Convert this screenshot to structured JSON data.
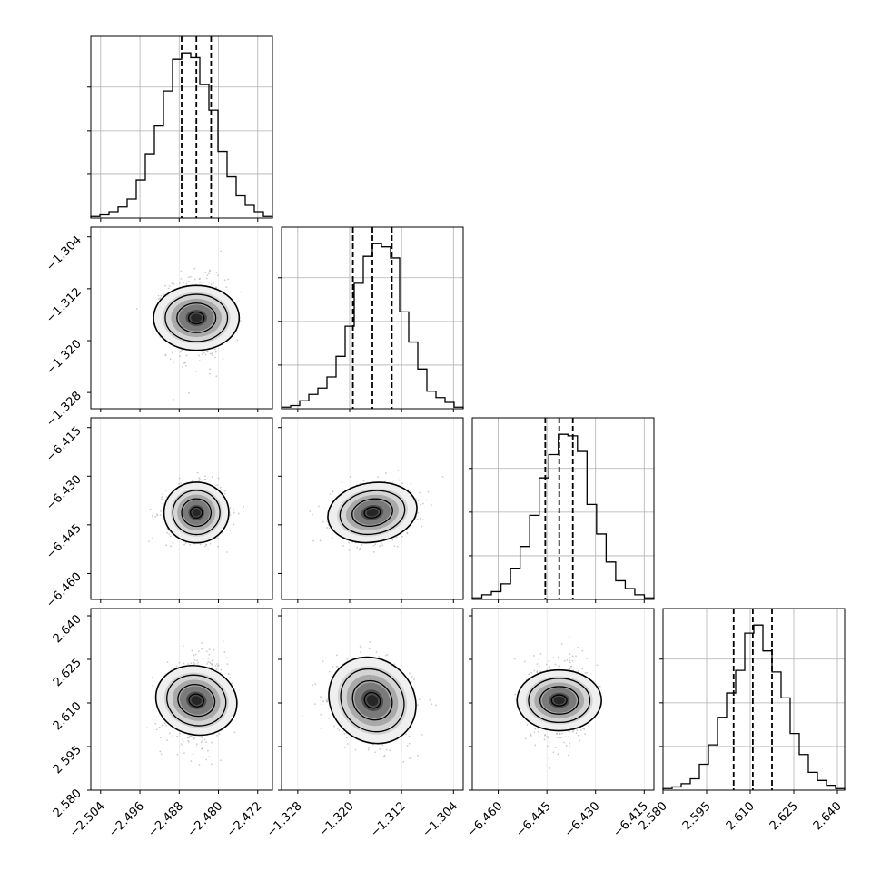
{
  "chart_data": {
    "type": "corner",
    "title": "",
    "parameters": [
      {
        "label": "",
        "range": [
          -2.506,
          -2.469
        ],
        "ticks": [
          -2.504,
          -2.496,
          -2.488,
          -2.48,
          -2.472
        ],
        "tick_labels": [
          "−2.504",
          "−2.496",
          "−2.488",
          "−2.480",
          "−2.472"
        ],
        "quantiles": [
          -2.4875,
          -2.4845,
          -2.4815
        ]
      },
      {
        "label": "",
        "range": [
          -1.3305,
          -1.3025
        ],
        "ticks": [
          -1.328,
          -1.32,
          -1.312,
          -1.304
        ],
        "tick_labels": [
          "−1.328",
          "−1.320",
          "−1.312",
          "−1.304"
        ],
        "quantiles": [
          -1.3195,
          -1.3165,
          -1.3135
        ]
      },
      {
        "label": "",
        "range": [
          -6.468,
          -6.412
        ],
        "ticks": [
          -6.46,
          -6.445,
          -6.43,
          -6.415
        ],
        "tick_labels": [
          "−6.460",
          "−6.445",
          "−6.430",
          "−6.415"
        ],
        "quantiles": [
          -6.4455,
          -6.4412,
          -6.437
        ]
      },
      {
        "label": "",
        "range": [
          2.58,
          2.6425
        ],
        "ticks": [
          2.58,
          2.595,
          2.61,
          2.625,
          2.64
        ],
        "tick_labels": [
          "2.580",
          "2.595",
          "2.610",
          "2.625",
          "2.640"
        ],
        "quantiles": [
          2.6043,
          2.6109,
          2.6175
        ]
      }
    ],
    "histograms": [
      [
        1,
        2,
        4,
        7,
        12,
        24,
        40,
        58,
        80,
        100,
        104,
        101,
        84,
        68,
        42,
        26,
        14,
        8,
        4,
        1
      ],
      [
        1,
        2,
        5,
        9,
        13,
        20,
        33,
        52,
        79,
        96,
        104,
        102,
        95,
        61,
        42,
        25,
        11,
        7,
        4,
        1
      ],
      [
        1,
        3,
        5,
        10,
        20,
        34,
        54,
        78,
        93,
        106,
        105,
        95,
        61,
        42,
        24,
        12,
        7,
        3,
        1
      ],
      [
        1,
        2,
        4,
        7,
        16,
        28,
        45,
        60,
        74,
        97,
        102,
        86,
        73,
        57,
        35,
        22,
        11,
        6,
        3,
        1
      ]
    ],
    "correlations": {
      "1_0": 0.0,
      "2_0": 0.0,
      "2_1": 0.12,
      "3_0": 0.15,
      "3_1": -0.18,
      "3_2": 0.0
    },
    "grid": true
  }
}
